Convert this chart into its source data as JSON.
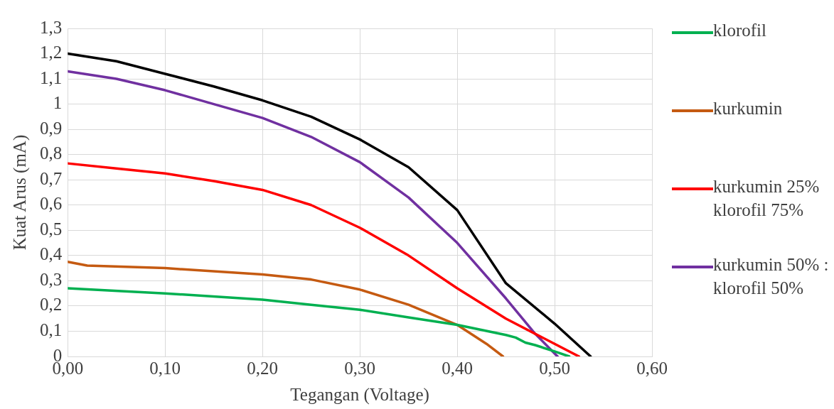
{
  "chart_data": {
    "type": "line",
    "xlabel": "Tegangan (Voltage)",
    "ylabel": "Kuat Arus (mA)",
    "xlim": [
      0,
      0.6
    ],
    "xticks": [
      {
        "value": 0,
        "label": "0,00"
      },
      {
        "value": 0.1,
        "label": "0,10"
      },
      {
        "value": 0.2,
        "label": "0,20"
      },
      {
        "value": 0.3,
        "label": "0,30"
      },
      {
        "value": 0.4,
        "label": "0,40"
      },
      {
        "value": 0.5,
        "label": "0,50"
      },
      {
        "value": 0.6,
        "label": "0,60"
      }
    ],
    "ylim": [
      0,
      1.3
    ],
    "yticks": [
      0,
      {
        "value": 0.1,
        "label": "0,1"
      },
      {
        "value": 0.2,
        "label": "0,2"
      },
      {
        "value": 0.3,
        "label": "0,3"
      },
      {
        "value": 0.4,
        "label": "0,4"
      },
      {
        "value": 0.5,
        "label": "0,5"
      },
      {
        "value": 0.6,
        "label": "0,6"
      },
      {
        "value": 0.7,
        "label": "0,7"
      },
      {
        "value": 0.8,
        "label": "0,8"
      },
      {
        "value": 0.9,
        "label": "0,9"
      },
      1,
      {
        "value": 1.1,
        "label": "1,1"
      },
      {
        "value": 1.2,
        "label": "1,2"
      },
      {
        "value": 1.3,
        "label": "1,3"
      }
    ],
    "grid": true,
    "legend": "right",
    "marker": "none",
    "line_style": "solid",
    "series": [
      {
        "name": "klorofil",
        "color": "#00b050",
        "x": [
          0,
          0.1,
          0.2,
          0.25,
          0.3,
          0.35,
          0.4,
          0.45,
          0.46,
          0.47,
          0.48,
          0.5,
          0.515
        ],
        "values": [
          0.27,
          0.25,
          0.225,
          0.205,
          0.185,
          0.155,
          0.125,
          0.085,
          0.075,
          0.055,
          0.045,
          0.02,
          0
        ]
      },
      {
        "name": "kurkumin",
        "color": "#c55a11",
        "x": [
          0,
          0.02,
          0.1,
          0.2,
          0.25,
          0.3,
          0.35,
          0.4,
          0.43,
          0.447
        ],
        "values": [
          0.375,
          0.36,
          0.35,
          0.325,
          0.305,
          0.265,
          0.205,
          0.125,
          0.05,
          0
        ]
      },
      {
        "name": "kurkumin 25% klorofil 75%",
        "color": "#ff0000",
        "x": [
          0,
          0.05,
          0.1,
          0.15,
          0.2,
          0.25,
          0.3,
          0.35,
          0.4,
          0.45,
          0.5,
          0.525
        ],
        "values": [
          0.765,
          0.745,
          0.725,
          0.695,
          0.66,
          0.6,
          0.51,
          0.4,
          0.27,
          0.15,
          0.05,
          0
        ]
      },
      {
        "name": "kurkumin 50% : klorofil 50%",
        "color": "#7030a0",
        "x": [
          0,
          0.05,
          0.1,
          0.15,
          0.2,
          0.25,
          0.3,
          0.35,
          0.4,
          0.45,
          0.48,
          0.503
        ],
        "values": [
          1.13,
          1.1,
          1.055,
          1.0,
          0.945,
          0.87,
          0.77,
          0.63,
          0.45,
          0.23,
          0.09,
          0
        ]
      },
      {
        "color": "#000000",
        "x": [
          0,
          0.05,
          0.1,
          0.15,
          0.2,
          0.25,
          0.3,
          0.35,
          0.4,
          0.45,
          0.5,
          0.537
        ],
        "values": [
          1.2,
          1.17,
          1.12,
          1.07,
          1.015,
          0.95,
          0.86,
          0.75,
          0.58,
          0.29,
          0.13,
          0
        ]
      }
    ]
  }
}
